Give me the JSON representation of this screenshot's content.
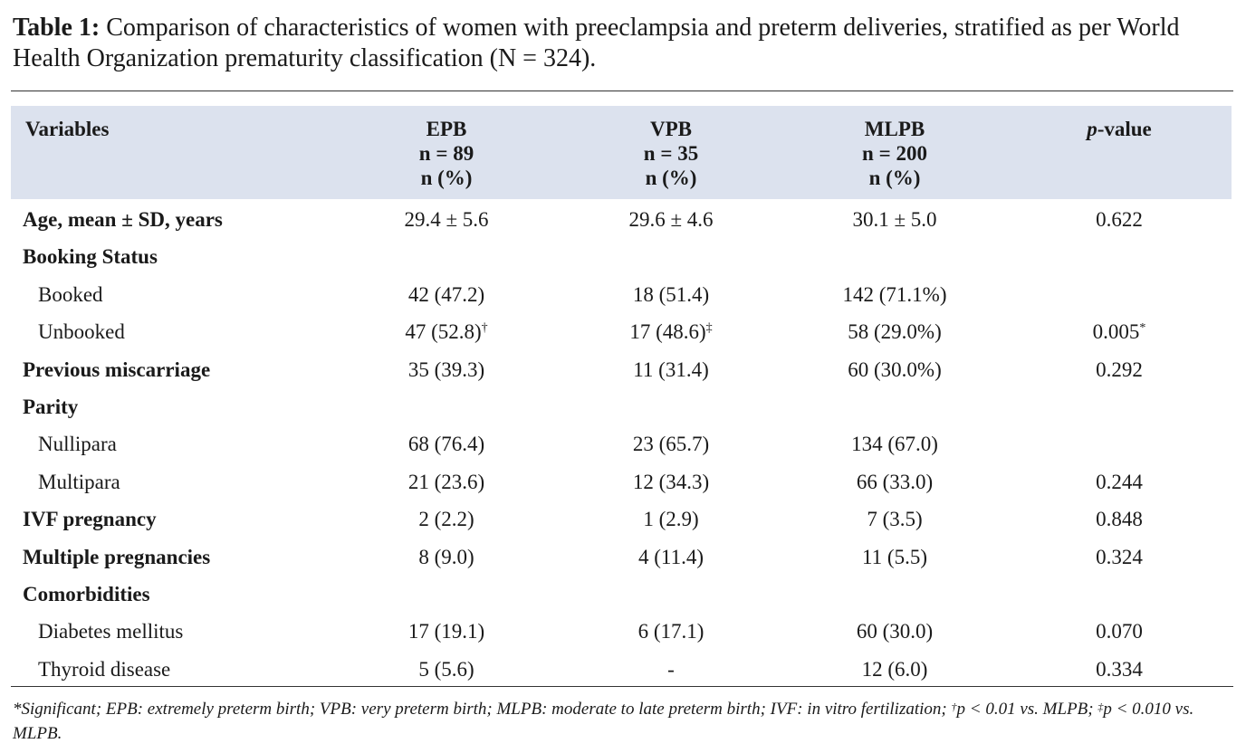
{
  "caption": {
    "label": "Table 1:",
    "text": "Comparison of characteristics of women with preeclampsia and preterm deliveries, stratified as per World Health Organization prematurity classification (N = 324)."
  },
  "table": {
    "columns": [
      [
        "Variables"
      ],
      [
        "EPB",
        "n = 89",
        "n (%)"
      ],
      [
        "VPB",
        "n = 35",
        "n (%)"
      ],
      [
        "MLPB",
        "n = 200",
        "n (%)"
      ],
      {
        "italic": "p",
        "rest": "-value"
      }
    ],
    "rows": [
      {
        "label": "Age, mean ± SD, years",
        "cells": [
          "29.4 ± 5.6",
          "29.6 ± 4.6",
          "30.1 ± 5.0",
          "0.622"
        ]
      },
      {
        "label": "Booking Status",
        "items": [
          {
            "label": "Booked",
            "cells": [
              "42 (47.2)",
              "18 (51.4)",
              "142 (71.1%)",
              null
            ]
          },
          {
            "label": "Unbooked",
            "cells": [
              {
                "text": "47 (52.8)",
                "sup": "†"
              },
              {
                "text": "17 (48.6)",
                "sup": "‡"
              },
              "58 (29.0%)",
              {
                "text": "0.005",
                "sup": "*"
              }
            ]
          }
        ]
      },
      {
        "label": "Previous miscarriage",
        "cells": [
          "35 (39.3)",
          "11 (31.4)",
          "60 (30.0%)",
          "0.292"
        ]
      },
      {
        "label": "Parity",
        "items": [
          {
            "label": "Nullipara",
            "cells": [
              "68 (76.4)",
              "23 (65.7)",
              "134 (67.0)",
              null
            ]
          },
          {
            "label": "Multipara",
            "cells": [
              "21 (23.6)",
              "12 (34.3)",
              "66 (33.0)",
              "0.244"
            ]
          }
        ]
      },
      {
        "label": "IVF pregnancy",
        "cells": [
          "2 (2.2)",
          "1 (2.9)",
          "7 (3.5)",
          "0.848"
        ]
      },
      {
        "label": "Multiple pregnancies",
        "cells": [
          "8 (9.0)",
          "4 (11.4)",
          "11 (5.5)",
          "0.324"
        ]
      },
      {
        "label": "Comorbidities",
        "items": [
          {
            "label": "Diabetes mellitus",
            "cells": [
              "17 (19.1)",
              "6 (17.1)",
              "60 (30.0)",
              "0.070"
            ]
          },
          {
            "label": "Thyroid disease",
            "cells": [
              "5 (5.6)",
              "-",
              "12 (6.0)",
              "0.334"
            ]
          }
        ]
      }
    ]
  },
  "footnote": [
    {
      "text": "*Significant; EPB: extremely preterm birth; VPB: very preterm birth; MLPB: moderate to late preterm birth; IVF: in vitro fertilization; "
    },
    {
      "sup": "†"
    },
    {
      "text": "p < 0.01 vs. MLPB; "
    },
    {
      "sup": "‡"
    },
    {
      "text": "p < 0.010 vs. MLPB."
    }
  ]
}
